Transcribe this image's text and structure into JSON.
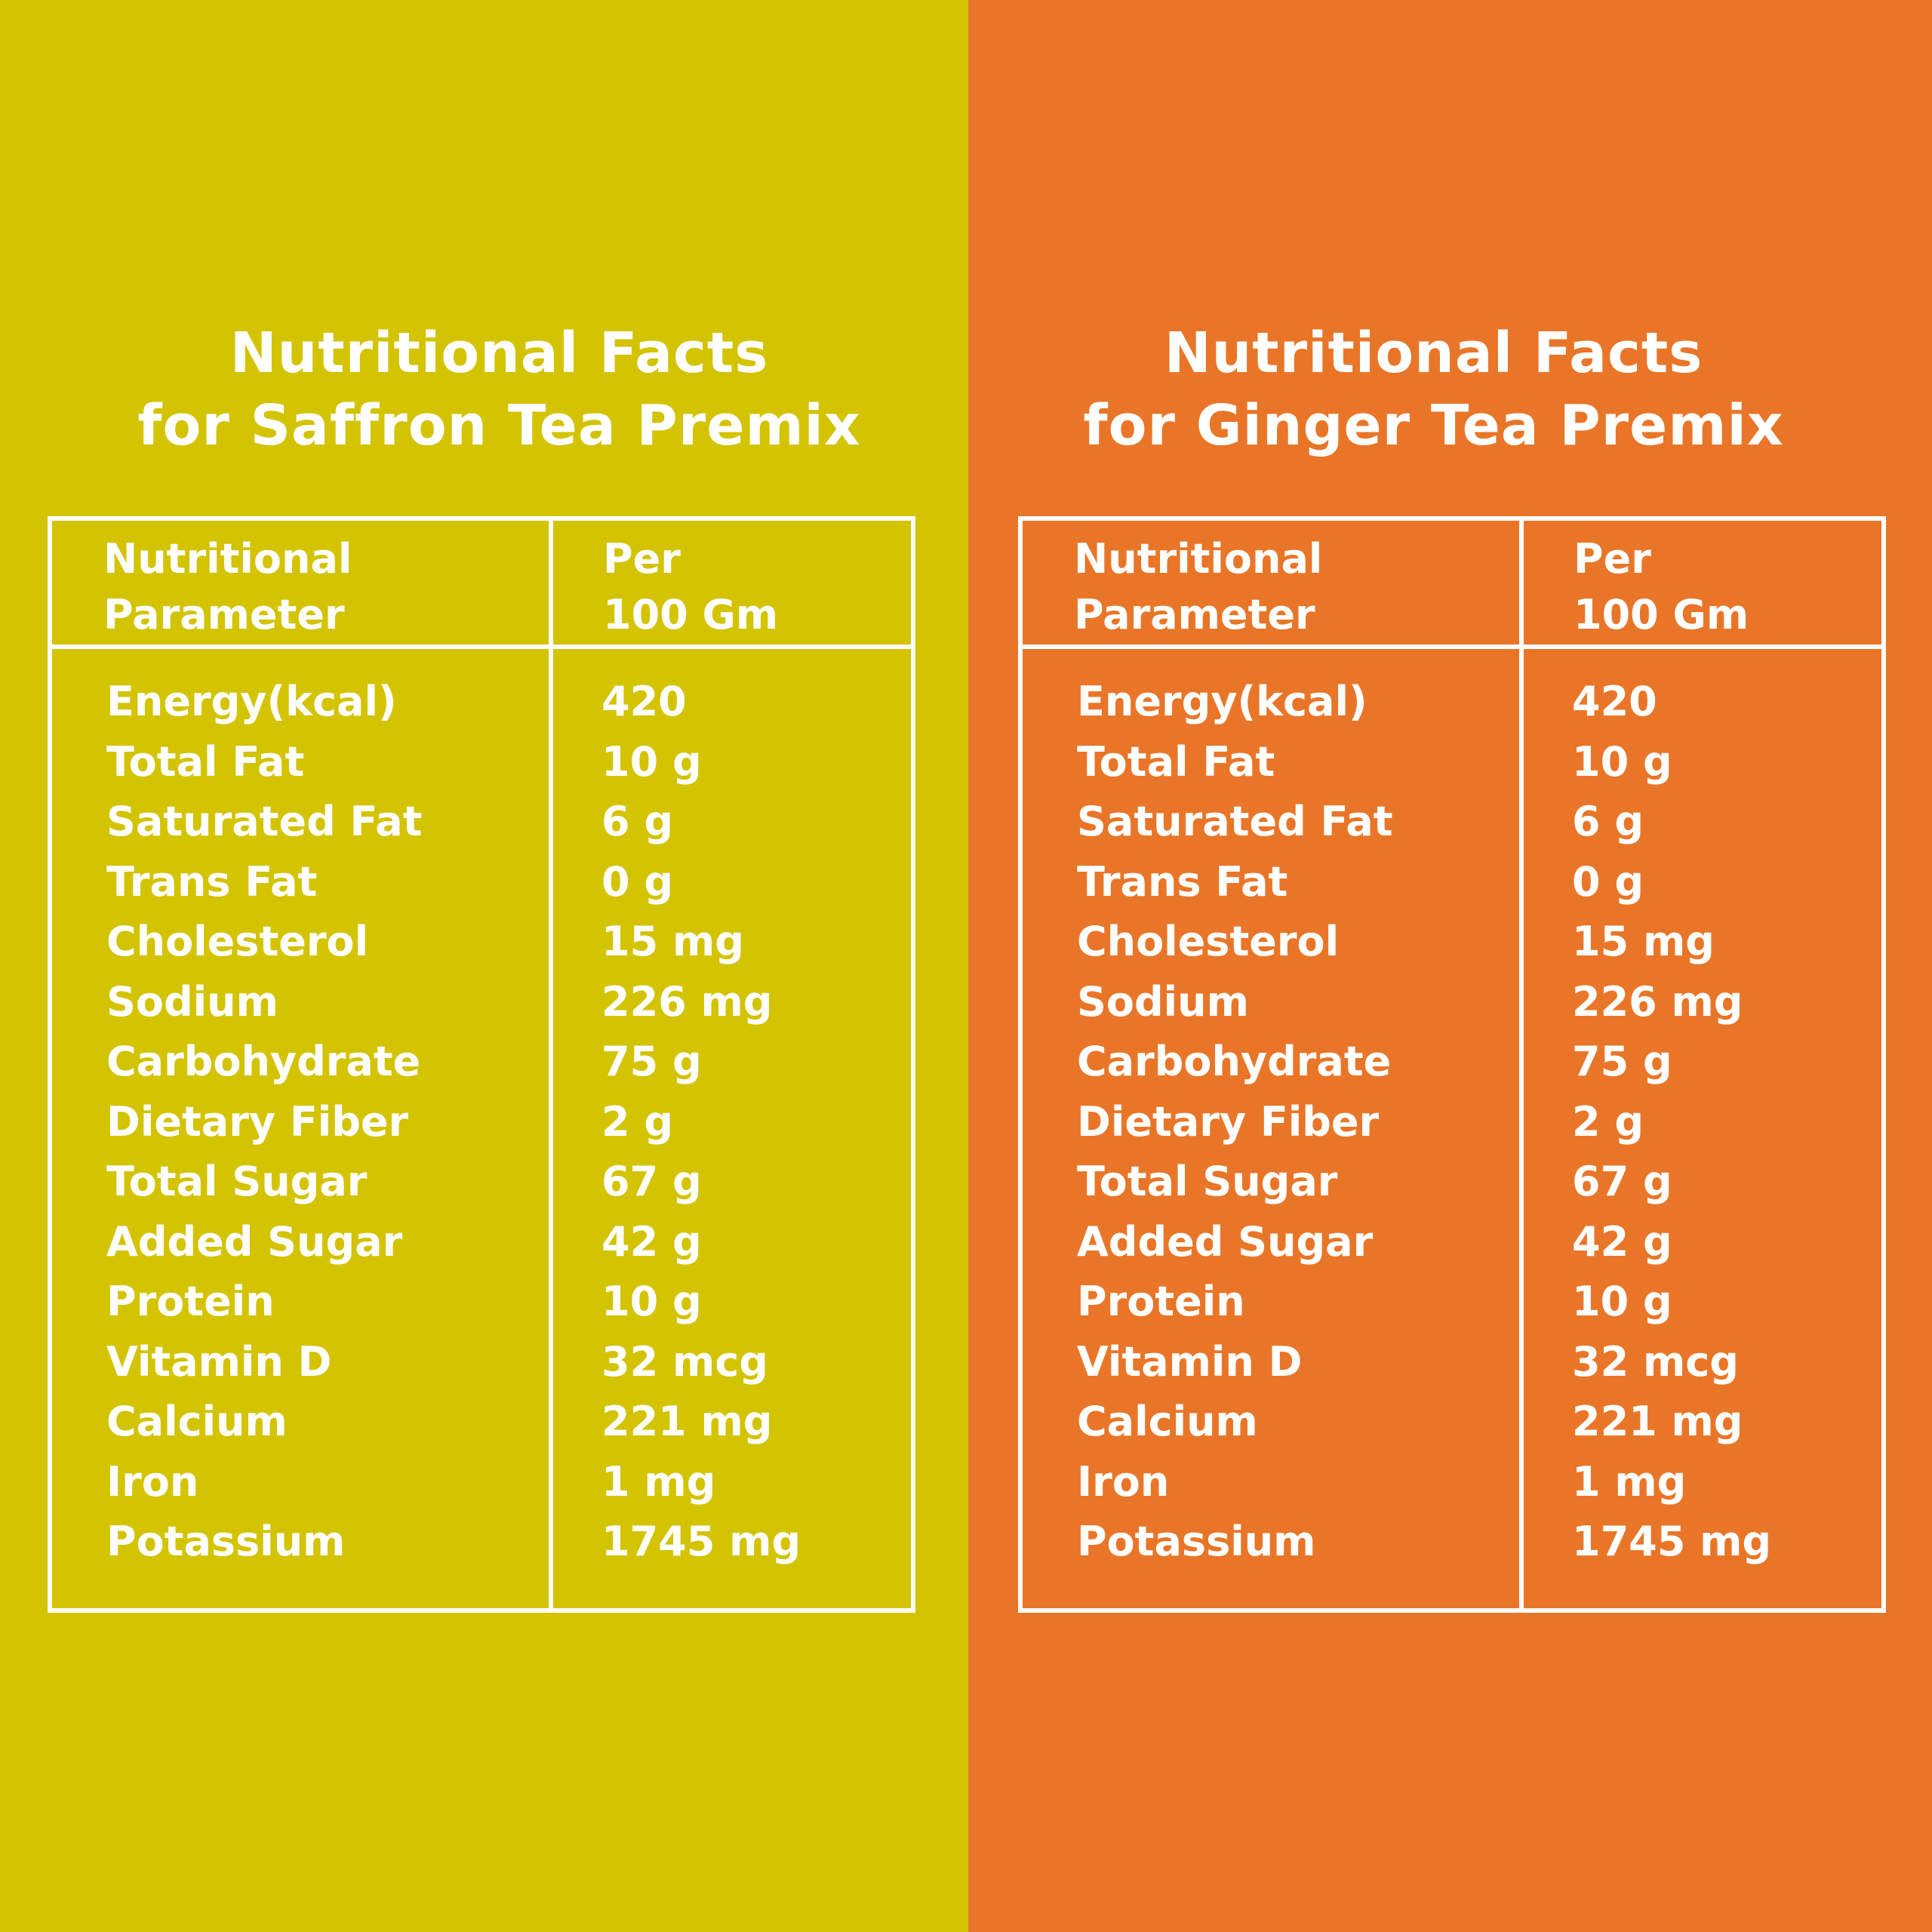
{
  "colors": {
    "saffron_bg": "#d3c300",
    "ginger_bg": "#e97628",
    "text": "#ffffff"
  },
  "panels": [
    {
      "title_line1": "Nutritional Facts",
      "title_line2": "for Saffron Tea Premix",
      "header_param_line1": "Nutritional",
      "header_param_line2": "Parameter",
      "header_per_line1": "Per",
      "header_per_line2": "100 Gm",
      "rows": [
        {
          "name": "Energy(kcal)",
          "value": "420"
        },
        {
          "name": "Total Fat",
          "value": "10 g"
        },
        {
          "name": "Saturated Fat",
          "value": "6 g"
        },
        {
          "name": "Trans Fat",
          "value": "0 g"
        },
        {
          "name": "Cholesterol",
          "value": "15 mg"
        },
        {
          "name": "Sodium",
          "value": "226 mg"
        },
        {
          "name": "Carbohydrate",
          "value": "75 g"
        },
        {
          "name": "Dietary Fiber",
          "value": "2 g"
        },
        {
          "name": "Total Sugar",
          "value": "67 g"
        },
        {
          "name": "Added Sugar",
          "value": "42 g"
        },
        {
          "name": "Protein",
          "value": "10 g"
        },
        {
          "name": "Vitamin D",
          "value": "32 mcg"
        },
        {
          "name": "Calcium",
          "value": "221 mg"
        },
        {
          "name": "Iron",
          "value": "1 mg"
        },
        {
          "name": "Potassium",
          "value": "1745 mg"
        }
      ]
    },
    {
      "title_line1": "Nutritional Facts",
      "title_line2": "for Ginger Tea Premix",
      "header_param_line1": "Nutritional",
      "header_param_line2": "Parameter",
      "header_per_line1": "Per",
      "header_per_line2": "100 Gm",
      "rows": [
        {
          "name": "Energy(kcal)",
          "value": "420"
        },
        {
          "name": "Total Fat",
          "value": "10 g"
        },
        {
          "name": "Saturated Fat",
          "value": "6 g"
        },
        {
          "name": "Trans Fat",
          "value": "0 g"
        },
        {
          "name": "Cholesterol",
          "value": "15 mg"
        },
        {
          "name": "Sodium",
          "value": "226 mg"
        },
        {
          "name": "Carbohydrate",
          "value": "75 g"
        },
        {
          "name": "Dietary Fiber",
          "value": "2 g"
        },
        {
          "name": "Total Sugar",
          "value": "67 g"
        },
        {
          "name": "Added Sugar",
          "value": "42 g"
        },
        {
          "name": "Protein",
          "value": "10 g"
        },
        {
          "name": "Vitamin D",
          "value": "32 mcg"
        },
        {
          "name": "Calcium",
          "value": "221 mg"
        },
        {
          "name": "Iron",
          "value": "1 mg"
        },
        {
          "name": "Potassium",
          "value": "1745 mg"
        }
      ]
    }
  ]
}
